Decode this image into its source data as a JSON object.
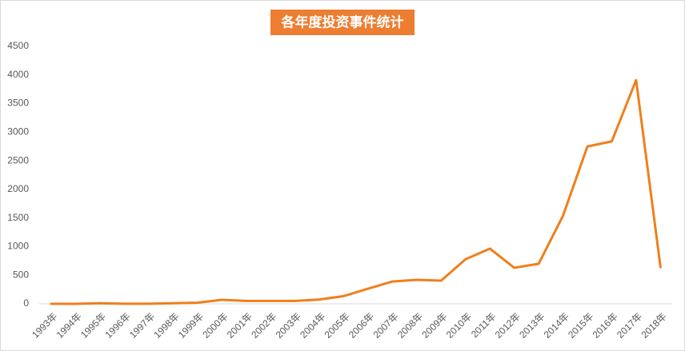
{
  "chart_data": {
    "type": "line",
    "title": "各年度投资事件统计",
    "categories": [
      "1993年",
      "1994年",
      "1995年",
      "1996年",
      "1997年",
      "1998年",
      "1999年",
      "2000年",
      "2001年",
      "2002年",
      "2003年",
      "2004年",
      "2005年",
      "2006年",
      "2007年",
      "2008年",
      "2009年",
      "2010年",
      "2011年",
      "2012年",
      "2013年",
      "2014年",
      "2015年",
      "2016年",
      "2017年",
      "2018年"
    ],
    "values": [
      0,
      0,
      10,
      2,
      2,
      10,
      20,
      70,
      50,
      50,
      50,
      75,
      135,
      265,
      390,
      420,
      405,
      780,
      965,
      630,
      700,
      1540,
      2750,
      2840,
      3910,
      640
    ],
    "color": "#f07f1b",
    "title_color": "#ed7d31",
    "ylim": [
      0,
      4500
    ],
    "yticks": [
      0,
      500,
      1000,
      1500,
      2000,
      2500,
      3000,
      3500,
      4000,
      4500
    ],
    "grid": false
  }
}
